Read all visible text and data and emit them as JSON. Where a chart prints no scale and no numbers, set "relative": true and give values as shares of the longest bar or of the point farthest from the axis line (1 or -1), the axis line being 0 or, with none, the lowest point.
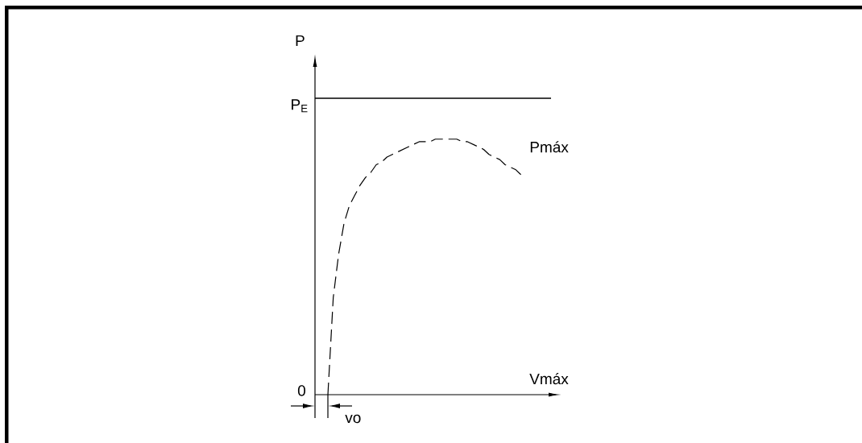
{
  "chart_data": {
    "type": "line",
    "relative": true,
    "xlabel": "Vmáx",
    "categories": [
      null,
      null,
      null,
      null,
      null,
      null,
      null,
      null,
      null,
      null,
      null,
      null,
      null,
      null,
      null,
      null,
      null,
      null,
      null,
      null,
      null,
      null,
      null,
      null,
      null,
      null,
      null,
      null,
      null,
      null,
      null,
      null,
      null,
      null,
      null,
      null,
      null
    ],
    "series": [
      {
        "name": "Pmáx",
        "color": "#000000",
        "line_style": "dashed",
        "values": [
          0,
          0.38,
          0.55,
          0.67,
          0.74,
          0.78,
          0.82,
          0.85,
          0.87,
          0.9,
          0.91,
          0.93,
          0.94,
          0.95,
          0.96,
          0.97,
          0.98,
          0.99,
          0.99,
          0.99,
          1,
          1,
          1,
          1,
          1,
          0.99,
          0.99,
          0.98,
          0.97,
          0.96,
          0.94,
          0.93,
          0.92,
          0.9,
          0.89,
          0.88,
          0.86
        ]
      }
    ],
    "ref_lines": [
      {
        "axis": "y",
        "value": 1.16,
        "label": "P$_{E}$"
      }
    ],
    "annotations": [
      "P",
      "0",
      "vo"
    ]
  }
}
